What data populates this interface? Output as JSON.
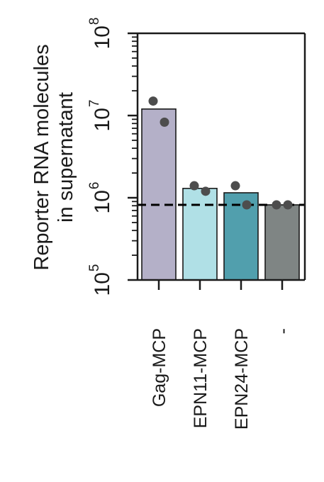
{
  "chart_data": {
    "type": "bar",
    "ylabel_lines": [
      "Reporter RNA molecules",
      "in supernatant"
    ],
    "yscale": "log",
    "ylim": [
      100000,
      100000000
    ],
    "yticks": [
      {
        "value": 100000,
        "base": "10",
        "exp": "5"
      },
      {
        "value": 1000000,
        "base": "10",
        "exp": "6"
      },
      {
        "value": 10000000,
        "base": "10",
        "exp": "7"
      },
      {
        "value": 100000000,
        "base": "10",
        "exp": "8"
      }
    ],
    "categories": [
      "Gag-MCP",
      "EPN11-MCP",
      "EPN24-MCP",
      "-"
    ],
    "values": [
      12000000,
      1300000,
      1150000,
      820000
    ],
    "points": [
      [
        15000000,
        8300000
      ],
      [
        1400000,
        1200000
      ],
      [
        1400000,
        820000
      ],
      [
        820000,
        820000
      ]
    ],
    "threshold": 820000,
    "colors": [
      "#b4b0c8",
      "#b0e0e6",
      "#519fad",
      "#7f8584"
    ],
    "point_color": "#4d4d4d",
    "grid": false
  }
}
